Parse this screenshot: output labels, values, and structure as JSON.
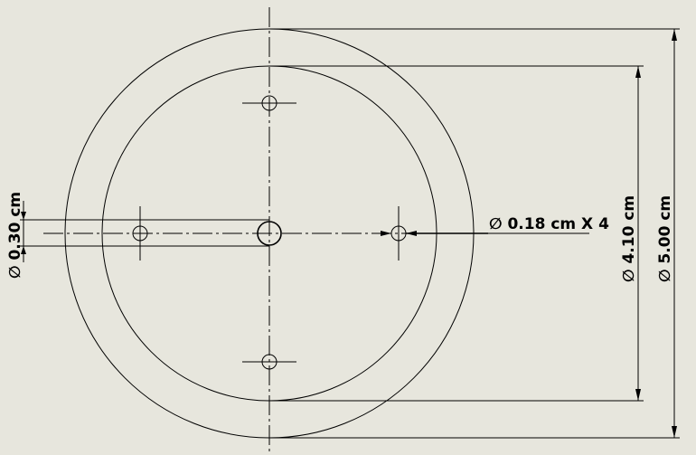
{
  "drawing": {
    "dimensions": {
      "outer_diameter": "∅ 5.00 cm",
      "inner_diameter": "∅ 4.10 cm",
      "small_holes": "∅ 0.18 cm X 4",
      "center_hole": "∅ 0.30 cm"
    }
  }
}
